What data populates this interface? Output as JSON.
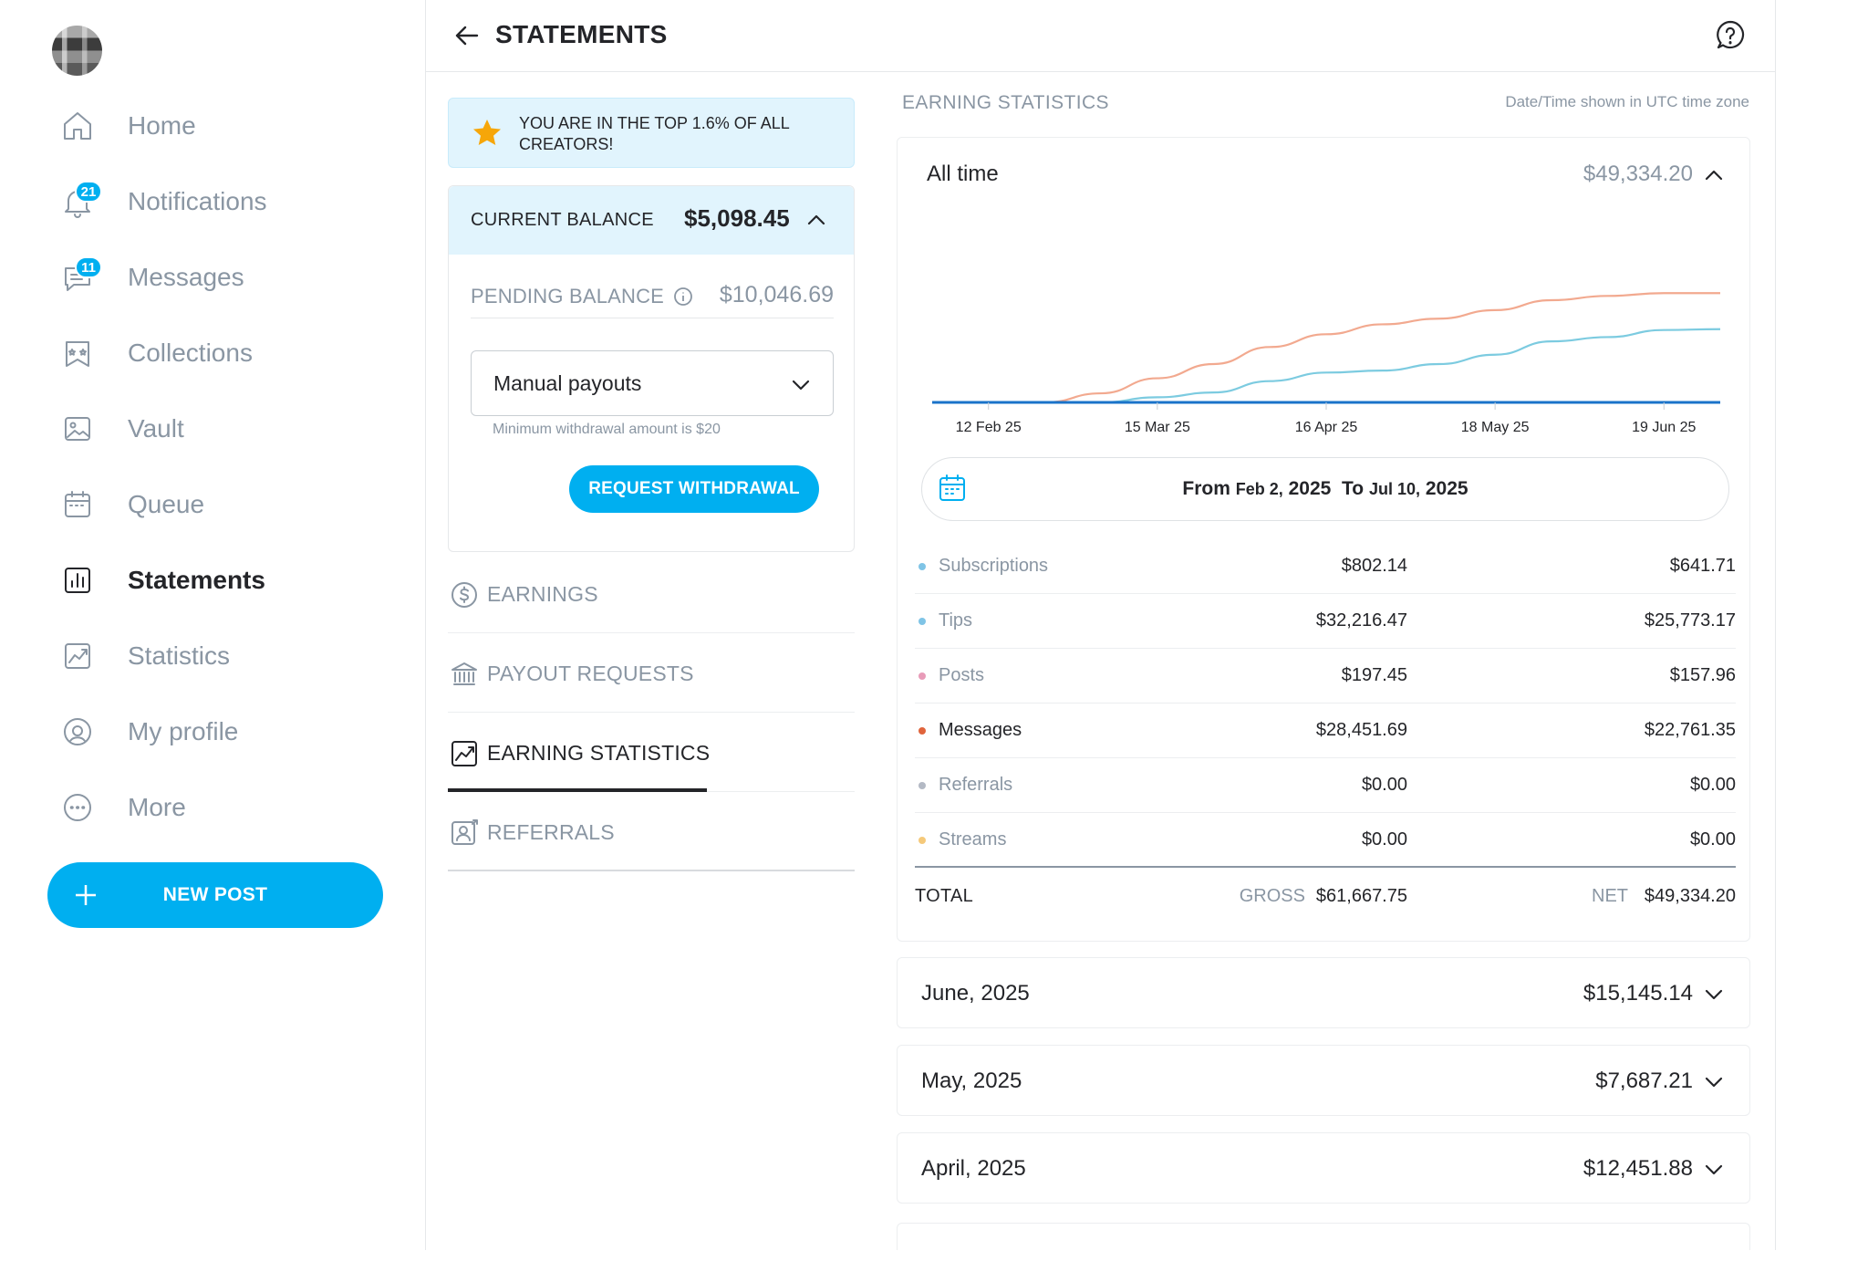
{
  "sidebar": {
    "items": [
      {
        "label": "Home",
        "icon": "home-icon"
      },
      {
        "label": "Notifications",
        "icon": "bell-icon",
        "badge": "21"
      },
      {
        "label": "Messages",
        "icon": "chat-icon",
        "badge": "11"
      },
      {
        "label": "Collections",
        "icon": "collections-icon"
      },
      {
        "label": "Vault",
        "icon": "image-icon"
      },
      {
        "label": "Queue",
        "icon": "calendar-icon"
      },
      {
        "label": "Statements",
        "icon": "chart-bar-icon",
        "active": true
      },
      {
        "label": "Statistics",
        "icon": "trend-icon"
      },
      {
        "label": "My profile",
        "icon": "profile-icon"
      },
      {
        "label": "More",
        "icon": "more-icon"
      }
    ],
    "new_post_label": "NEW POST"
  },
  "header": {
    "title": "STATEMENTS"
  },
  "banner": {
    "text": "YOU ARE IN THE TOP 1.6% OF ALL CREATORS!"
  },
  "balance": {
    "current_label": "CURRENT BALANCE",
    "current_value": "$5,098.45",
    "pending_label": "PENDING BALANCE",
    "pending_value": "$10,046.69",
    "payout_method": "Manual payouts",
    "min_note": "Minimum withdrawal amount is $20",
    "request_label": "REQUEST WITHDRAWAL"
  },
  "menu": [
    {
      "label": "EARNINGS",
      "icon": "dollar-icon"
    },
    {
      "label": "PAYOUT REQUESTS",
      "icon": "bank-icon"
    },
    {
      "label": "EARNING STATISTICS",
      "icon": "trend-icon",
      "active": true
    },
    {
      "label": "REFERRALS",
      "icon": "referral-icon"
    }
  ],
  "stats": {
    "section_title": "EARNING STATISTICS",
    "timezone_note": "Date/Time shown in UTC time zone",
    "period_label": "All time",
    "period_value": "$49,334.20",
    "range": {
      "from_label": "From",
      "from_date": "Feb 2,",
      "from_year": "2025",
      "to_label": "To",
      "to_date": "Jul 10,",
      "to_year": "2025"
    },
    "rows": [
      {
        "name": "Subscriptions",
        "gross": "$802.14",
        "net": "$641.71",
        "color": "#7fc4e6"
      },
      {
        "name": "Tips",
        "gross": "$32,216.47",
        "net": "$25,773.17",
        "color": "#7fc4e6"
      },
      {
        "name": "Posts",
        "gross": "$197.45",
        "net": "$157.96",
        "color": "#e89bb8"
      },
      {
        "name": "Messages",
        "gross": "$28,451.69",
        "net": "$22,761.35",
        "color": "#e0643c"
      },
      {
        "name": "Referrals",
        "gross": "$0.00",
        "net": "$0.00",
        "color": "#b3b9c4"
      },
      {
        "name": "Streams",
        "gross": "$0.00",
        "net": "$0.00",
        "color": "#f5c97a"
      }
    ],
    "total": {
      "label": "TOTAL",
      "gross_label": "GROSS",
      "gross_value": "$61,667.75",
      "net_label": "NET",
      "net_value": "$49,334.20"
    }
  },
  "months": [
    {
      "name": "June, 2025",
      "value": "$15,145.14"
    },
    {
      "name": "May, 2025",
      "value": "$7,687.21"
    },
    {
      "name": "April, 2025",
      "value": "$12,451.88"
    }
  ],
  "chart_data": {
    "type": "line",
    "x": [
      "Feb 2",
      "12 Feb 25",
      "22 Feb",
      "5 Mar",
      "15 Mar 25",
      "25 Mar",
      "5 Apr",
      "16 Apr 25",
      "26 Apr",
      "7 May",
      "18 May 25",
      "29 May",
      "8 Jun",
      "19 Jun 25",
      "Jul 10"
    ],
    "tick_labels": [
      "12 Feb 25",
      "15 Mar 25",
      "16 Apr 25",
      "18 May 25",
      "19 Jun 25"
    ],
    "series": [
      {
        "color": "#f2a98f",
        "values": [
          0,
          0,
          0,
          3200,
          8500,
          13500,
          19500,
          24000,
          27500,
          29500,
          32500,
          36000,
          37500,
          38500,
          38500
        ]
      },
      {
        "color": "#7ccbe0",
        "values": [
          0,
          0,
          0,
          0,
          1800,
          3500,
          7500,
          10500,
          11200,
          13500,
          16800,
          21500,
          23000,
          25500,
          25800
        ]
      },
      {
        "color": "#1a73c9",
        "values": [
          0,
          0,
          0,
          0,
          0,
          0,
          0,
          0,
          0,
          0,
          0,
          0,
          0,
          0,
          0
        ]
      }
    ],
    "ylim": [
      0,
      45000
    ],
    "grid": false
  }
}
